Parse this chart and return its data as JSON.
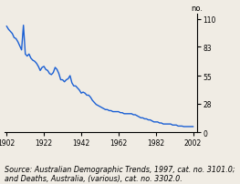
{
  "ylabel_right": "no.",
  "yticks": [
    0,
    28,
    55,
    83,
    110
  ],
  "xticks": [
    1902,
    1922,
    1942,
    1962,
    1982,
    2002
  ],
  "xlim": [
    1901,
    2004
  ],
  "ylim": [
    0,
    115
  ],
  "line_color": "#1a5fd4",
  "line_width": 1.0,
  "source_text": "Source: Australian Demographic Trends, 1997, cat. no. 3101.0;\nand Deaths, Australia, (various), cat. no. 3302.0.",
  "source_fontsize": 5.8,
  "background_color": "#f0ece4",
  "data": [
    [
      1902,
      103
    ],
    [
      1903,
      100
    ],
    [
      1904,
      98
    ],
    [
      1905,
      96
    ],
    [
      1906,
      92
    ],
    [
      1907,
      91
    ],
    [
      1908,
      88
    ],
    [
      1909,
      84
    ],
    [
      1910,
      80
    ],
    [
      1911,
      104
    ],
    [
      1912,
      76
    ],
    [
      1913,
      74
    ],
    [
      1914,
      76
    ],
    [
      1915,
      72
    ],
    [
      1916,
      70
    ],
    [
      1917,
      69
    ],
    [
      1918,
      67
    ],
    [
      1919,
      64
    ],
    [
      1920,
      60
    ],
    [
      1921,
      63
    ],
    [
      1922,
      64
    ],
    [
      1923,
      61
    ],
    [
      1924,
      60
    ],
    [
      1925,
      57
    ],
    [
      1926,
      56
    ],
    [
      1927,
      58
    ],
    [
      1928,
      63
    ],
    [
      1929,
      61
    ],
    [
      1930,
      57
    ],
    [
      1931,
      51
    ],
    [
      1932,
      51
    ],
    [
      1933,
      49
    ],
    [
      1934,
      51
    ],
    [
      1935,
      52
    ],
    [
      1936,
      55
    ],
    [
      1937,
      48
    ],
    [
      1938,
      45
    ],
    [
      1939,
      45
    ],
    [
      1940,
      43
    ],
    [
      1941,
      41
    ],
    [
      1942,
      38
    ],
    [
      1943,
      39
    ],
    [
      1944,
      38
    ],
    [
      1945,
      36
    ],
    [
      1946,
      36
    ],
    [
      1947,
      34
    ],
    [
      1948,
      31
    ],
    [
      1949,
      29
    ],
    [
      1950,
      27
    ],
    [
      1951,
      26
    ],
    [
      1952,
      25
    ],
    [
      1953,
      24
    ],
    [
      1954,
      23
    ],
    [
      1955,
      22
    ],
    [
      1956,
      22
    ],
    [
      1957,
      21
    ],
    [
      1958,
      21
    ],
    [
      1959,
      20
    ],
    [
      1960,
      20
    ],
    [
      1961,
      20
    ],
    [
      1962,
      20
    ],
    [
      1963,
      19
    ],
    [
      1964,
      19
    ],
    [
      1965,
      18
    ],
    [
      1966,
      18
    ],
    [
      1967,
      18
    ],
    [
      1968,
      18
    ],
    [
      1969,
      18
    ],
    [
      1970,
      17
    ],
    [
      1971,
      17
    ],
    [
      1972,
      16
    ],
    [
      1973,
      15
    ],
    [
      1974,
      14
    ],
    [
      1975,
      14
    ],
    [
      1976,
      13
    ],
    [
      1977,
      13
    ],
    [
      1978,
      12
    ],
    [
      1979,
      12
    ],
    [
      1980,
      11
    ],
    [
      1981,
      10
    ],
    [
      1982,
      10
    ],
    [
      1983,
      10
    ],
    [
      1984,
      9
    ],
    [
      1985,
      9
    ],
    [
      1986,
      8
    ],
    [
      1987,
      8
    ],
    [
      1988,
      8
    ],
    [
      1989,
      8
    ],
    [
      1990,
      8
    ],
    [
      1991,
      7
    ],
    [
      1992,
      7
    ],
    [
      1993,
      7
    ],
    [
      1994,
      6
    ],
    [
      1995,
      6
    ],
    [
      1996,
      6
    ],
    [
      1997,
      5.5
    ],
    [
      1998,
      5.5
    ],
    [
      1999,
      5.5
    ],
    [
      2000,
      5.5
    ],
    [
      2001,
      5.5
    ],
    [
      2002,
      5.5
    ]
  ]
}
